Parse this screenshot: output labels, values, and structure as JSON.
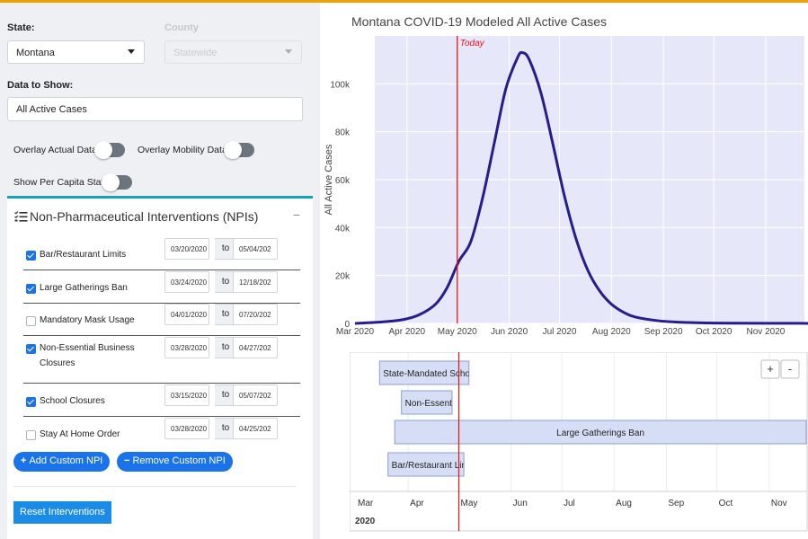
{
  "filters": {
    "state_label": "State:",
    "state_value": "Montana",
    "county_label": "County",
    "county_value": "Statewide",
    "data_label": "Data to Show:",
    "data_value": "All Active Cases"
  },
  "toggles": {
    "overlay_actual": "Overlay Actual Data",
    "overlay_mobility": "Overlay Mobility Data",
    "per_capita": "Show Per Capita Stats"
  },
  "npi": {
    "title": "Non-Pharmaceutical Interventions (NPIs)",
    "minimize": "−",
    "to_label": "to",
    "items": [
      {
        "name": "Bar/Restaurant Limits",
        "checked": true,
        "start": "03/20/2020",
        "end": "05/04/202"
      },
      {
        "name": "Large Gatherings Ban",
        "checked": true,
        "start": "03/24/2020",
        "end": "12/18/202"
      },
      {
        "name": "Mandatory Mask Usage",
        "checked": false,
        "start": "04/01/2020",
        "end": "07/20/202"
      },
      {
        "name": "Non-Essential Business Closures",
        "checked": true,
        "start": "03/28/2020",
        "end": "04/27/202"
      },
      {
        "name": "School Closures",
        "checked": true,
        "start": "03/15/2020",
        "end": "05/07/202"
      },
      {
        "name": "Stay At Home Order",
        "checked": false,
        "start": "03/28/2020",
        "end": "04/25/202"
      }
    ],
    "add_button": "Add Custom NPI",
    "remove_button": "Remove Custom NPI",
    "add_icon": "+",
    "remove_icon": "−",
    "reset_button": "Reset Interventions"
  },
  "chart_data": [
    {
      "type": "line",
      "title": "Montana COVID-19 Modeled All Active Cases",
      "ylabel": "All Active Cases",
      "today_label": "Today",
      "today_color": "#e81010",
      "line_color": "#261d8c",
      "plot_bg": "#e6e8fa",
      "x_ticks": [
        "Mar 2020",
        "Apr 2020",
        "May 2020",
        "Jun 2020",
        "Jul 2020",
        "Aug 2020",
        "Sep 2020",
        "Oct 2020",
        "Nov 2020"
      ],
      "y_ticks": [
        "0",
        "20k",
        "40k",
        "60k",
        "80k",
        "100k"
      ],
      "ylim": [
        0,
        120000
      ],
      "series": [
        {
          "x": [
            "2020-03-01",
            "2020-03-15",
            "2020-03-29",
            "2020-04-08",
            "2020-04-18",
            "2020-04-25",
            "2020-05-02",
            "2020-05-09",
            "2020-05-16",
            "2020-05-23",
            "2020-05-30",
            "2020-06-06",
            "2020-06-09",
            "2020-06-13",
            "2020-06-20",
            "2020-06-27",
            "2020-07-04",
            "2020-07-11",
            "2020-07-18",
            "2020-07-25",
            "2020-08-01",
            "2020-08-08",
            "2020-08-15",
            "2020-08-29",
            "2020-09-12",
            "2020-09-26",
            "2020-10-10",
            "2020-10-31",
            "2020-11-30"
          ],
          "y": [
            0,
            500,
            1500,
            3500,
            8000,
            15000,
            26000,
            34000,
            52000,
            75000,
            98000,
            111000,
            113000,
            110000,
            96000,
            75000,
            53000,
            35000,
            22000,
            13500,
            8000,
            4700,
            2700,
            1100,
            450,
            200,
            100,
            50,
            20
          ]
        }
      ]
    },
    {
      "type": "timeline",
      "x_ticks": [
        "Mar",
        "Apr",
        "May",
        "Jun",
        "Jul",
        "Aug",
        "Sep",
        "Oct",
        "Nov"
      ],
      "year_label": "2020",
      "bars": [
        {
          "label": "State-Mandated Schoo",
          "start": "2020-03-15",
          "end": "2020-05-07"
        },
        {
          "label": "Non-Essenti",
          "start": "2020-03-28",
          "end": "2020-04-27"
        },
        {
          "label": "Large Gatherings Ban",
          "start": "2020-03-24",
          "end": "2020-12-18"
        },
        {
          "label": "Bar/Restaurant Lin",
          "start": "2020-03-20",
          "end": "2020-05-04"
        }
      ],
      "today": "2020-05-01",
      "zoom_in": "+",
      "zoom_out": "-"
    }
  ]
}
